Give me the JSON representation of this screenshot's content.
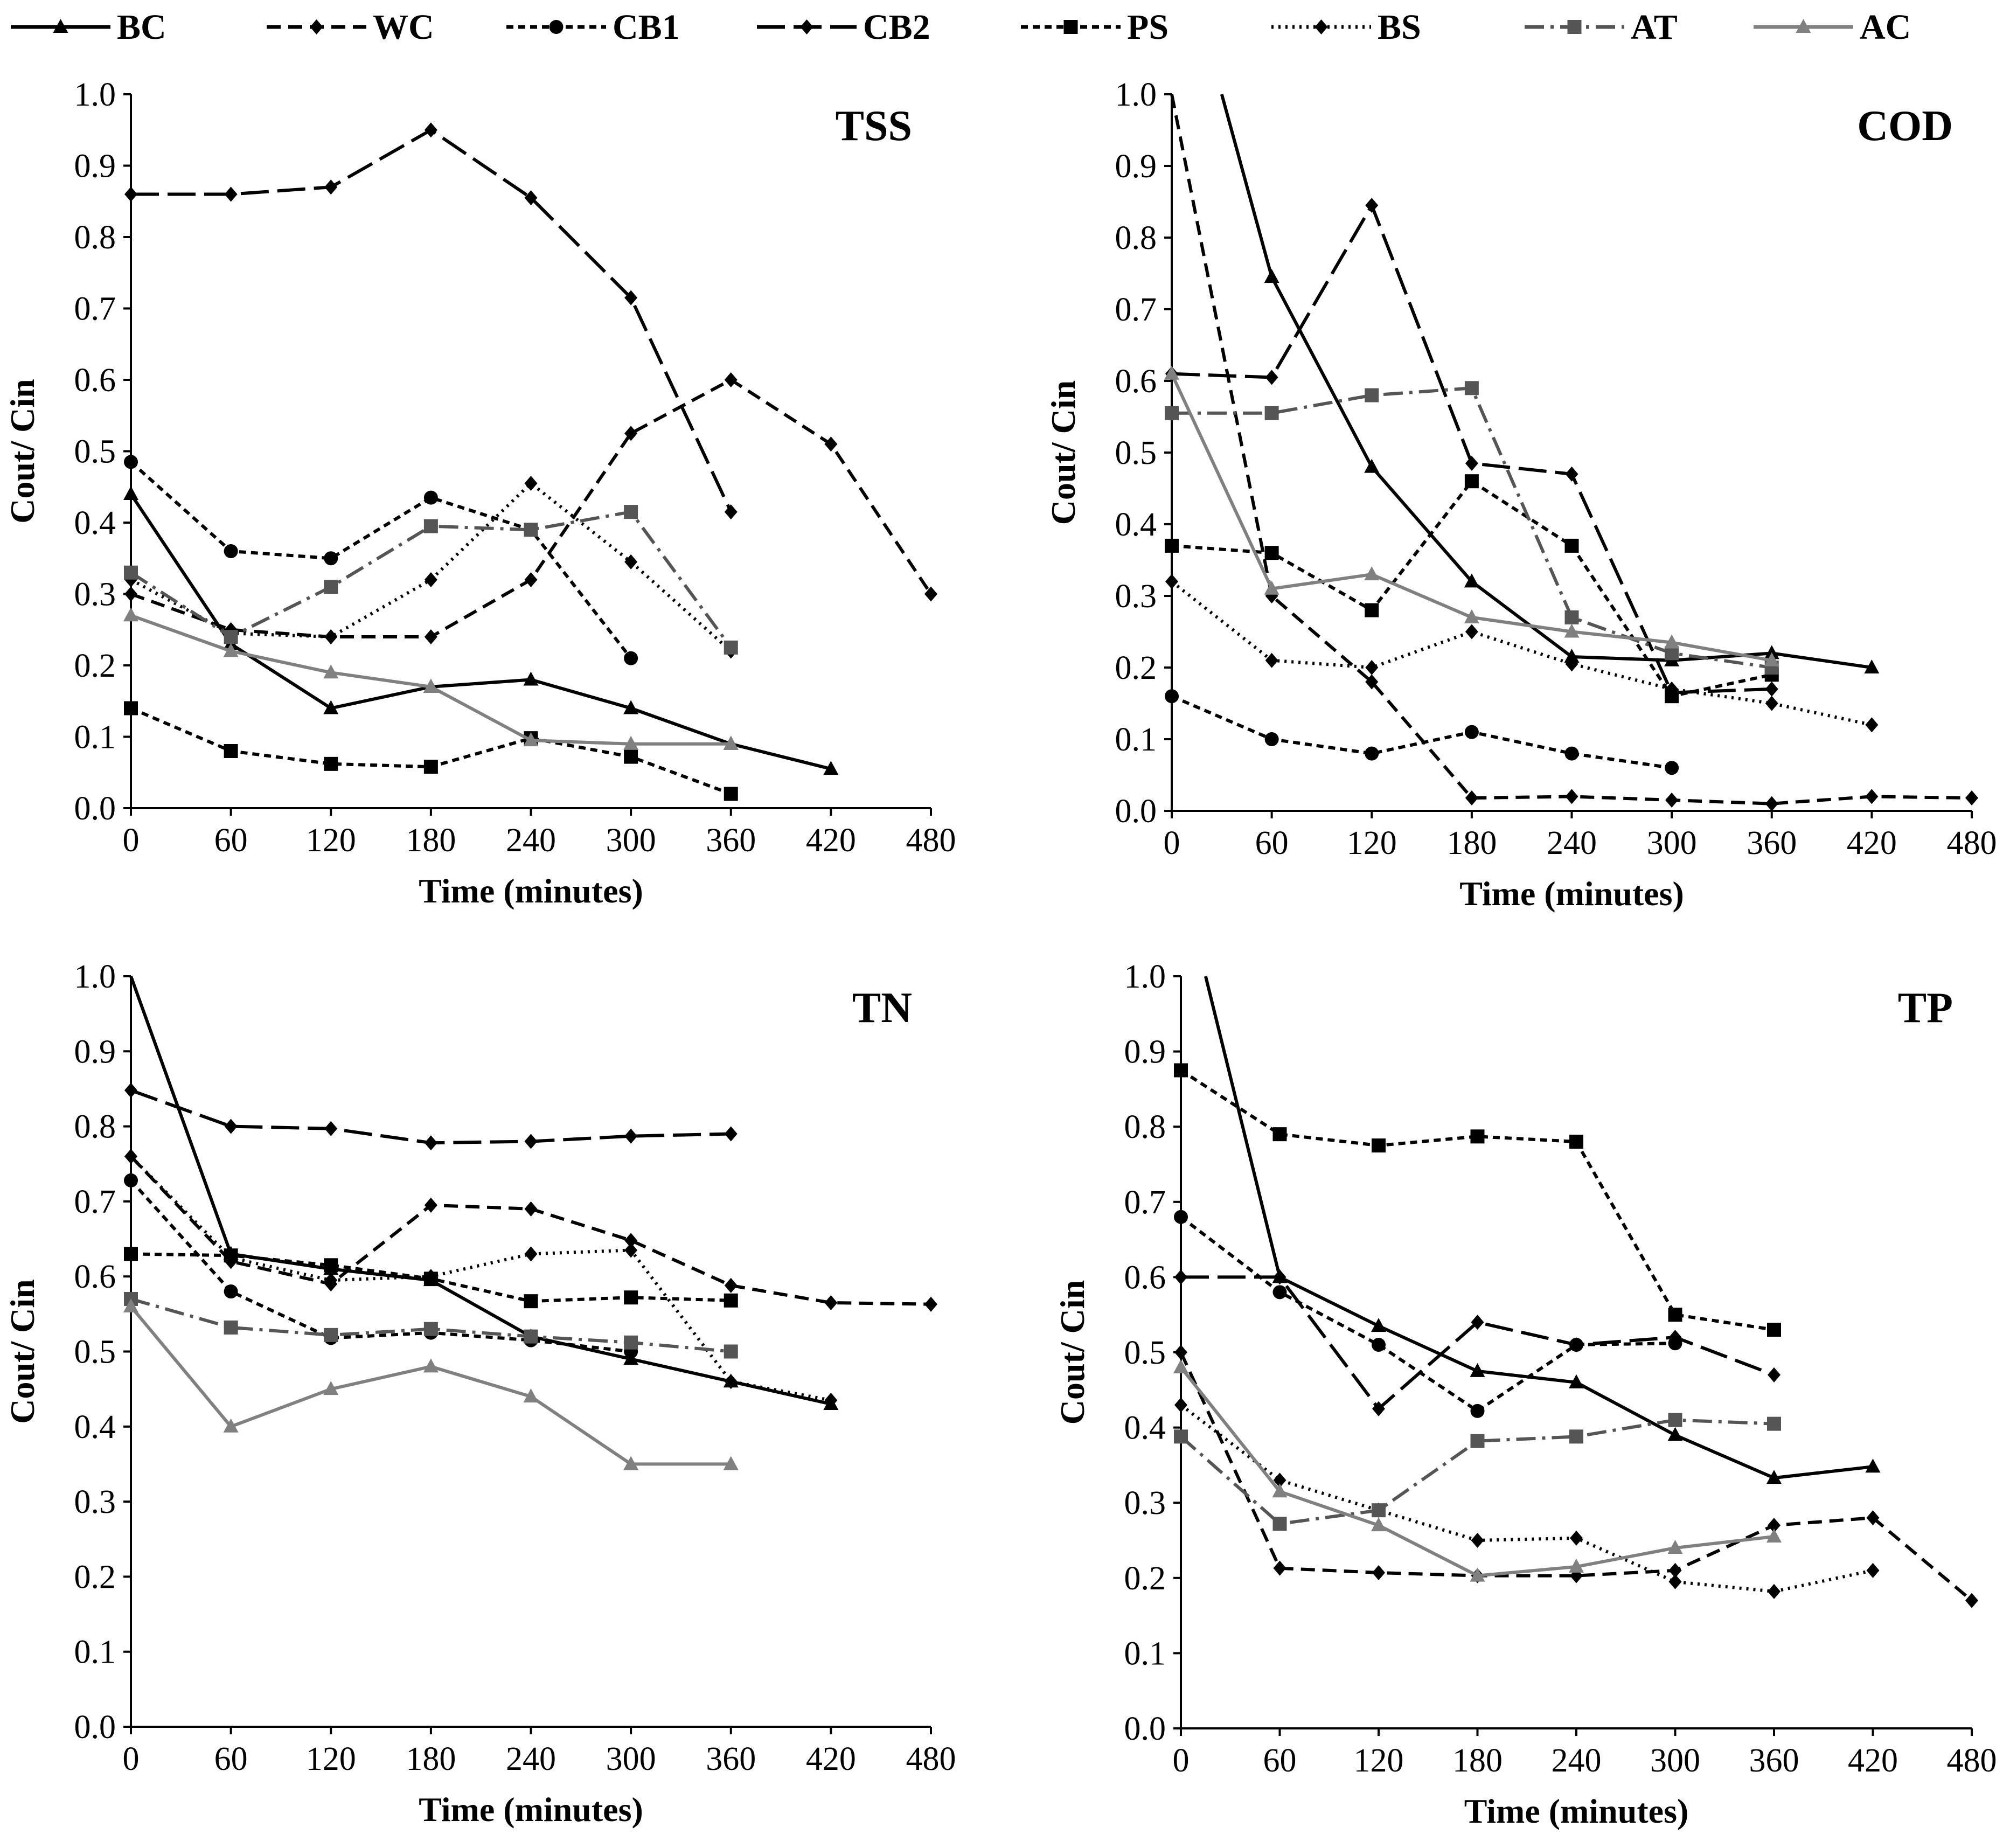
{
  "legend": [
    {
      "key": "BC",
      "color": "#000000",
      "dash": "solid",
      "marker": "triangle"
    },
    {
      "key": "WC",
      "color": "#000000",
      "dash": "dash",
      "marker": "diamond"
    },
    {
      "key": "CB1",
      "color": "#000000",
      "dash": "shortdash",
      "marker": "circle"
    },
    {
      "key": "CB2",
      "color": "#000000",
      "dash": "longdash",
      "marker": "diamond"
    },
    {
      "key": "PS",
      "color": "#000000",
      "dash": "shortdash",
      "marker": "square"
    },
    {
      "key": "BS",
      "color": "#000000",
      "dash": "dot",
      "marker": "diamond"
    },
    {
      "key": "AT",
      "color": "#555555",
      "dash": "dashdot",
      "marker": "square"
    },
    {
      "key": "AC",
      "color": "#808080",
      "dash": "solid",
      "marker": "triangle"
    }
  ],
  "chart_data": [
    {
      "type": "line",
      "title": "TSS",
      "xlabel": "Time (minutes)",
      "ylabel": "Cout/ Cin",
      "xlim": [
        0,
        480
      ],
      "ylim": [
        0,
        1.0
      ],
      "xticks": [
        0,
        60,
        120,
        180,
        240,
        300,
        360,
        420,
        480
      ],
      "yticks": [
        "0.0",
        "0.1",
        "0.2",
        "0.3",
        "0.4",
        "0.5",
        "0.6",
        "0.7",
        "0.8",
        "0.9",
        "1.0"
      ],
      "series": [
        {
          "name": "BC",
          "x": [
            0,
            60,
            120,
            180,
            240,
            300,
            360,
            420
          ],
          "y": [
            0.44,
            0.23,
            0.14,
            0.17,
            0.18,
            0.14,
            0.09,
            0.055
          ]
        },
        {
          "name": "WC",
          "x": [
            0,
            60,
            120,
            180,
            240,
            300,
            360,
            420,
            480
          ],
          "y": [
            0.3,
            0.25,
            0.24,
            0.24,
            0.32,
            0.525,
            0.6,
            0.51,
            0.3
          ]
        },
        {
          "name": "CB1",
          "x": [
            0,
            60,
            120,
            180,
            240,
            300
          ],
          "y": [
            0.485,
            0.36,
            0.35,
            0.435,
            0.39,
            0.21
          ]
        },
        {
          "name": "CB2",
          "x": [
            0,
            60,
            120,
            180,
            240,
            300,
            360
          ],
          "y": [
            0.86,
            0.86,
            0.87,
            0.95,
            0.855,
            0.715,
            0.415
          ]
        },
        {
          "name": "PS",
          "x": [
            0,
            60,
            120,
            180,
            240,
            300,
            360
          ],
          "y": [
            0.14,
            0.08,
            0.062,
            0.058,
            0.098,
            0.072,
            0.02
          ]
        },
        {
          "name": "BS",
          "x": [
            0,
            60,
            120,
            180,
            240,
            300,
            360
          ],
          "y": [
            0.32,
            0.245,
            0.24,
            0.32,
            0.455,
            0.345,
            0.22
          ]
        },
        {
          "name": "AT",
          "x": [
            0,
            60,
            120,
            180,
            240,
            300,
            360
          ],
          "y": [
            0.33,
            0.24,
            0.31,
            0.395,
            0.39,
            0.415,
            0.225
          ]
        },
        {
          "name": "AC",
          "x": [
            0,
            60,
            120,
            180,
            240,
            300,
            360
          ],
          "y": [
            0.27,
            0.22,
            0.19,
            0.17,
            0.095,
            0.09,
            0.09
          ]
        }
      ]
    },
    {
      "type": "line",
      "title": "COD",
      "xlabel": "Time (minutes)",
      "ylabel": "Cout/ Cin",
      "xlim": [
        0,
        480
      ],
      "ylim": [
        0,
        1.0
      ],
      "xticks": [
        0,
        60,
        120,
        180,
        240,
        300,
        360,
        420,
        480
      ],
      "yticks": [
        "0.0",
        "0.1",
        "0.2",
        "0.3",
        "0.4",
        "0.5",
        "0.6",
        "0.7",
        "0.8",
        "0.9",
        "1.0"
      ],
      "series": [
        {
          "name": "BC",
          "x": [
            30,
            60,
            120,
            180,
            240,
            300,
            360,
            420
          ],
          "y": [
            1.0,
            0.745,
            0.48,
            0.32,
            0.215,
            0.21,
            0.22,
            0.2
          ]
        },
        {
          "name": "WC",
          "x": [
            0,
            60,
            120,
            180,
            240,
            300,
            360,
            420,
            480
          ],
          "y": [
            1.0,
            0.3,
            0.18,
            0.018,
            0.02,
            0.015,
            0.01,
            0.02,
            0.018
          ]
        },
        {
          "name": "CB1",
          "x": [
            0,
            60,
            120,
            180,
            240,
            300
          ],
          "y": [
            0.16,
            0.1,
            0.08,
            0.11,
            0.08,
            0.06
          ]
        },
        {
          "name": "CB2",
          "x": [
            0,
            60,
            120,
            180,
            240,
            300,
            360
          ],
          "y": [
            0.61,
            0.605,
            0.845,
            0.485,
            0.47,
            0.165,
            0.17
          ]
        },
        {
          "name": "PS",
          "x": [
            0,
            60,
            120,
            180,
            240,
            300,
            360
          ],
          "y": [
            0.37,
            0.36,
            0.28,
            0.46,
            0.37,
            0.16,
            0.19
          ]
        },
        {
          "name": "BS",
          "x": [
            0,
            60,
            120,
            180,
            240,
            300,
            360,
            420
          ],
          "y": [
            0.32,
            0.21,
            0.2,
            0.25,
            0.205,
            0.17,
            0.15,
            0.12
          ]
        },
        {
          "name": "AT",
          "x": [
            0,
            60,
            120,
            180,
            240,
            300,
            360
          ],
          "y": [
            0.555,
            0.555,
            0.58,
            0.59,
            0.27,
            0.22,
            0.2
          ]
        },
        {
          "name": "AC",
          "x": [
            0,
            60,
            120,
            180,
            240,
            300,
            360
          ],
          "y": [
            0.61,
            0.31,
            0.33,
            0.27,
            0.25,
            0.235,
            0.21
          ]
        }
      ]
    },
    {
      "type": "line",
      "title": "TN",
      "xlabel": "Time (minutes)",
      "ylabel": "Cout/ Cin",
      "xlim": [
        0,
        480
      ],
      "ylim": [
        0,
        1.0
      ],
      "xticks": [
        0,
        60,
        120,
        180,
        240,
        300,
        360,
        420,
        480
      ],
      "yticks": [
        "0.0",
        "0.1",
        "0.2",
        "0.3",
        "0.4",
        "0.5",
        "0.6",
        "0.7",
        "0.8",
        "0.9",
        "1.0"
      ],
      "series": [
        {
          "name": "BC",
          "x": [
            0,
            60,
            120,
            180,
            240,
            300,
            360,
            420
          ],
          "y": [
            1.0,
            0.63,
            0.61,
            0.595,
            0.52,
            0.49,
            0.46,
            0.43
          ]
        },
        {
          "name": "WC",
          "x": [
            0,
            60,
            120,
            180,
            240,
            300,
            360,
            420,
            480
          ],
          "y": [
            0.76,
            0.62,
            0.59,
            0.695,
            0.69,
            0.648,
            0.588,
            0.565,
            0.563
          ]
        },
        {
          "name": "CB1",
          "x": [
            0,
            60,
            120,
            180,
            240,
            300
          ],
          "y": [
            0.728,
            0.58,
            0.518,
            0.525,
            0.515,
            0.5
          ]
        },
        {
          "name": "CB2",
          "x": [
            0,
            60,
            120,
            180,
            240,
            300,
            360
          ],
          "y": [
            0.848,
            0.8,
            0.797,
            0.778,
            0.78,
            0.787,
            0.79
          ]
        },
        {
          "name": "PS",
          "x": [
            0,
            60,
            120,
            180,
            240,
            300,
            360
          ],
          "y": [
            0.63,
            0.628,
            0.615,
            0.597,
            0.567,
            0.572,
            0.568
          ]
        },
        {
          "name": "BS",
          "x": [
            0,
            60,
            120,
            180,
            240,
            300,
            360,
            420
          ],
          "y": [
            0.76,
            0.625,
            0.595,
            0.6,
            0.63,
            0.635,
            0.46,
            0.435
          ]
        },
        {
          "name": "AT",
          "x": [
            0,
            60,
            120,
            180,
            240,
            300,
            360
          ],
          "y": [
            0.57,
            0.532,
            0.522,
            0.53,
            0.52,
            0.512,
            0.5
          ]
        },
        {
          "name": "AC",
          "x": [
            0,
            60,
            120,
            180,
            240,
            300,
            360
          ],
          "y": [
            0.56,
            0.4,
            0.45,
            0.48,
            0.44,
            0.35,
            0.35
          ]
        }
      ]
    },
    {
      "type": "line",
      "title": "TP",
      "xlabel": "Time (minutes)",
      "ylabel": "Cout/ Cin",
      "xlim": [
        0,
        480
      ],
      "ylim": [
        0,
        1.0
      ],
      "xticks": [
        0,
        60,
        120,
        180,
        240,
        300,
        360,
        420,
        480
      ],
      "yticks": [
        "0.0",
        "0.1",
        "0.2",
        "0.3",
        "0.4",
        "0.5",
        "0.6",
        "0.7",
        "0.8",
        "0.9",
        "1.0"
      ],
      "series": [
        {
          "name": "BC",
          "x": [
            15,
            60,
            120,
            180,
            240,
            300,
            360,
            420
          ],
          "y": [
            1.0,
            0.6,
            0.535,
            0.475,
            0.46,
            0.39,
            0.333,
            0.348
          ]
        },
        {
          "name": "WC",
          "x": [
            0,
            60,
            120,
            180,
            240,
            300,
            360,
            420,
            480
          ],
          "y": [
            0.5,
            0.213,
            0.207,
            0.203,
            0.203,
            0.21,
            0.27,
            0.28,
            0.17
          ]
        },
        {
          "name": "CB1",
          "x": [
            0,
            60,
            120,
            180,
            240,
            300
          ],
          "y": [
            0.68,
            0.58,
            0.51,
            0.422,
            0.51,
            0.512
          ]
        },
        {
          "name": "CB2",
          "x": [
            0,
            60,
            120,
            180,
            240,
            300,
            360
          ],
          "y": [
            0.6,
            0.6,
            0.425,
            0.54,
            0.51,
            0.52,
            0.47
          ]
        },
        {
          "name": "PS",
          "x": [
            0,
            60,
            120,
            180,
            240,
            300,
            360
          ],
          "y": [
            0.875,
            0.79,
            0.775,
            0.787,
            0.78,
            0.55,
            0.53
          ]
        },
        {
          "name": "BS",
          "x": [
            0,
            60,
            120,
            180,
            240,
            300,
            360,
            420
          ],
          "y": [
            0.43,
            0.33,
            0.29,
            0.25,
            0.253,
            0.195,
            0.182,
            0.21
          ]
        },
        {
          "name": "AT",
          "x": [
            0,
            60,
            120,
            180,
            240,
            300,
            360
          ],
          "y": [
            0.388,
            0.272,
            0.29,
            0.382,
            0.388,
            0.41,
            0.405
          ]
        },
        {
          "name": "AC",
          "x": [
            0,
            60,
            120,
            180,
            240,
            300,
            360
          ],
          "y": [
            0.48,
            0.315,
            0.27,
            0.203,
            0.215,
            0.24,
            0.255
          ]
        }
      ]
    }
  ]
}
